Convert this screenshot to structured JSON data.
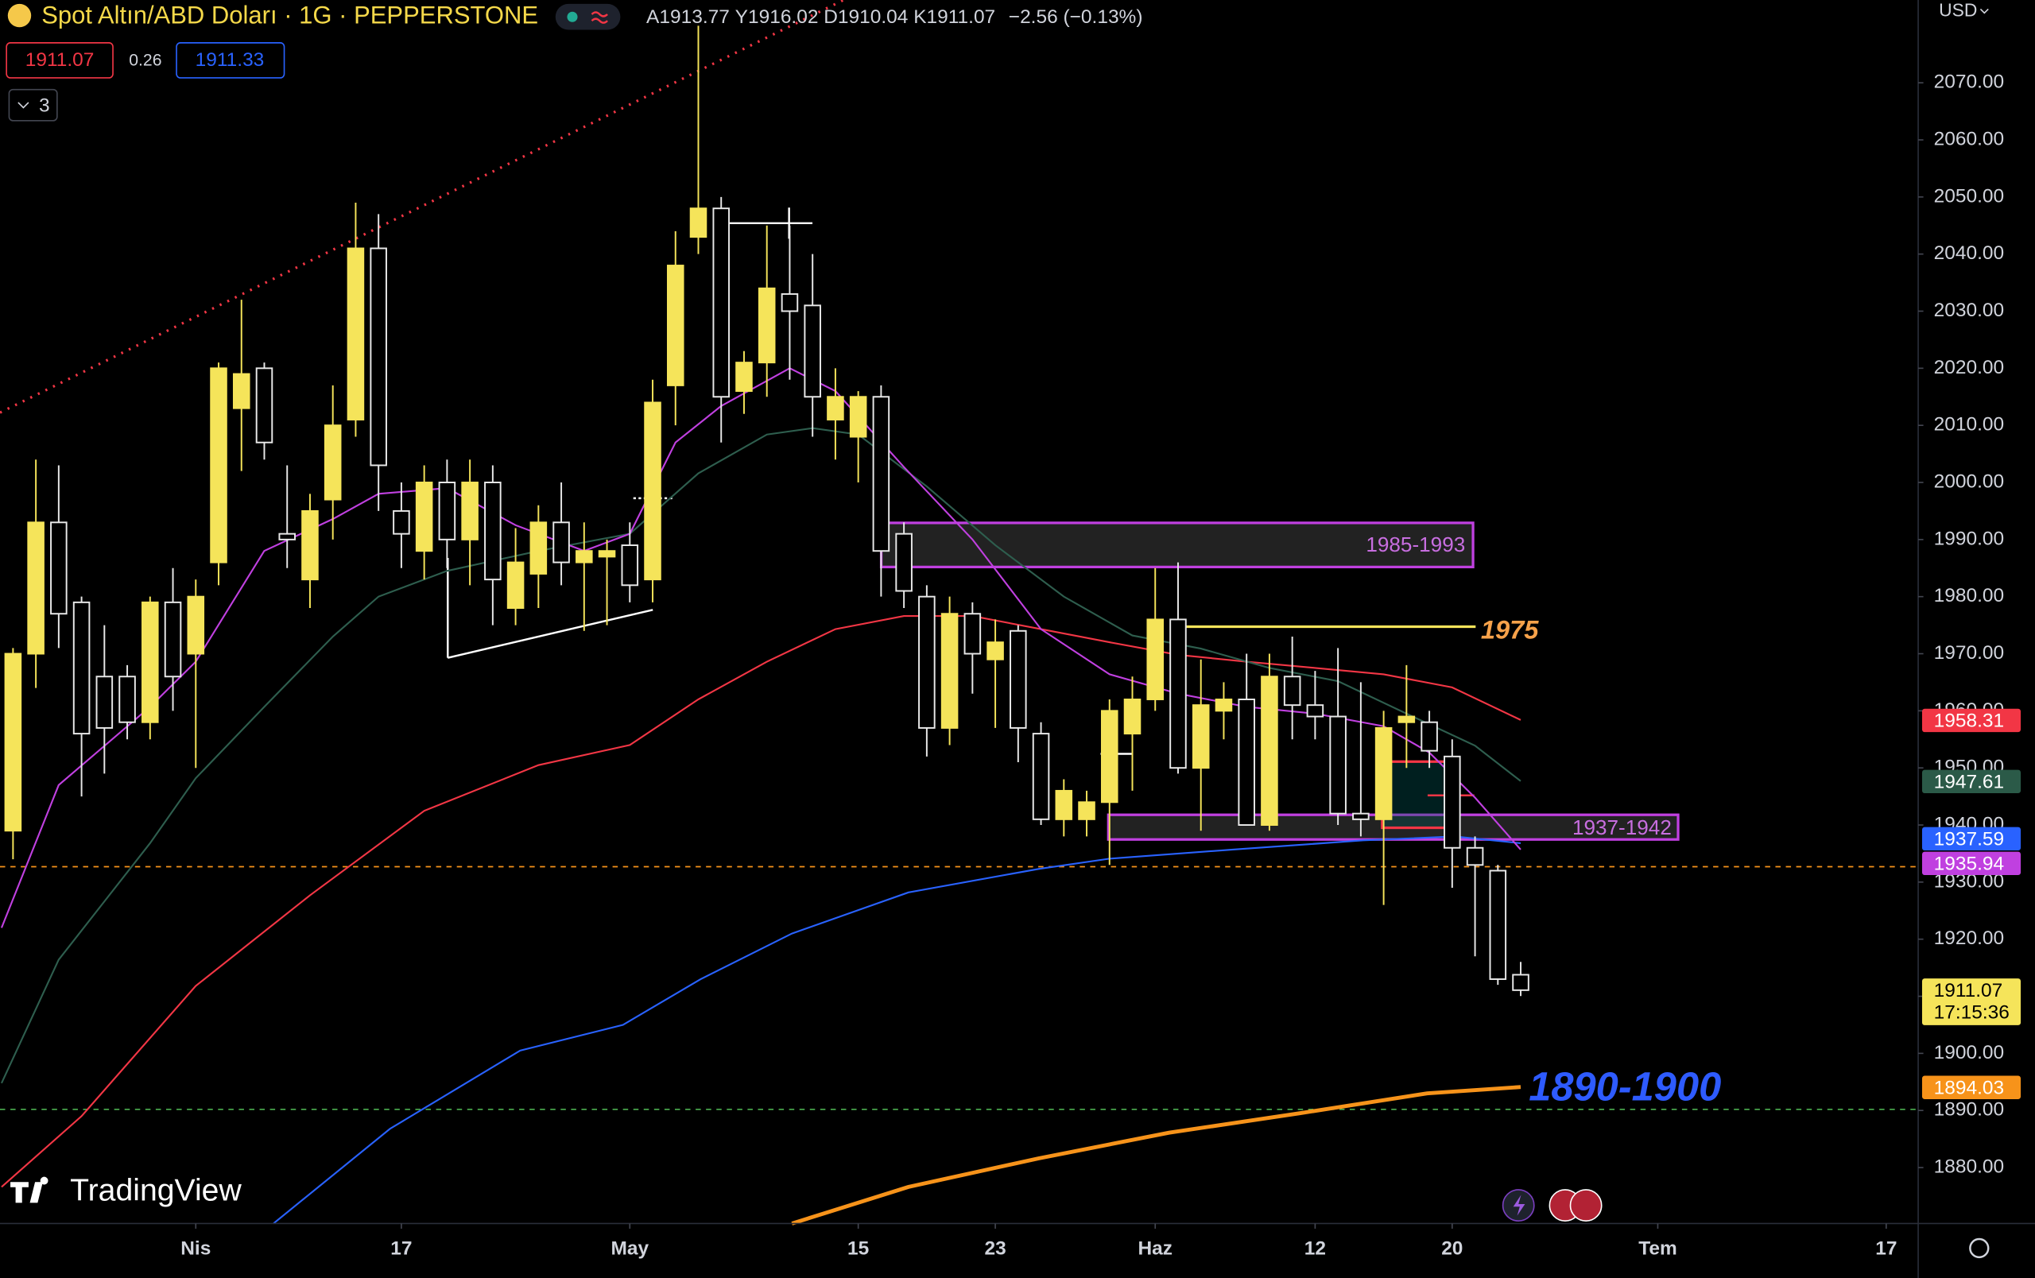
{
  "header": {
    "symbol": "Spot Altın/ABD Doları · 1G · PEPPERSTONE",
    "ohlc_keys": [
      "A",
      "Y",
      "D",
      "K"
    ],
    "change": "−2.56 (−0.13%)",
    "bid": 1911.07,
    "spread": 0.26,
    "ask": 1911.33,
    "indicators": 3,
    "currency": "USD",
    "brand": "TradingView"
  },
  "chart_data": {
    "type": "candlestick",
    "up_color": "#f5e45a",
    "down_color": "#e8e8e8",
    "grid": false,
    "x": [
      0,
      1,
      2,
      3,
      4,
      5,
      6,
      7,
      8,
      9,
      10,
      11,
      12,
      13,
      14,
      15,
      16,
      17,
      18,
      19,
      20,
      21,
      22,
      23,
      24,
      25,
      26,
      27,
      28,
      29,
      30,
      31,
      32,
      33,
      34,
      35,
      36,
      37,
      38,
      39,
      40,
      41,
      42,
      43,
      44,
      45,
      46,
      47,
      48,
      49,
      50,
      51,
      52,
      53,
      54,
      55,
      56,
      57,
      58,
      59,
      60,
      61,
      62,
      63,
      64,
      65,
      66
    ],
    "open": [
      1939,
      1970,
      1993,
      1979,
      1966,
      1966,
      1958,
      1979,
      1970,
      1986,
      2013,
      2020,
      1991,
      1983,
      1997,
      2011,
      2041,
      1995,
      1988,
      2000,
      1990,
      2000,
      1978,
      1984,
      1993,
      1986,
      1987,
      1989,
      1983,
      2017,
      2043,
      2048,
      2016,
      2021,
      2033,
      2031,
      2011,
      2008,
      2015,
      1991,
      1980,
      1957,
      1977,
      1969,
      1974,
      1956,
      1941,
      1941,
      1944,
      1956,
      1962,
      1976,
      1950,
      1960,
      1962,
      1940,
      1966,
      1961,
      1959,
      1942,
      1941,
      1958,
      1958,
      1952,
      1936,
      1932,
      1913.77
    ],
    "high": [
      1971,
      2004,
      2003,
      1980,
      1975,
      1968,
      1980,
      1985,
      1983,
      2021,
      2032,
      2021,
      2003,
      1998,
      2017,
      2049,
      2047,
      2000,
      2003,
      2004,
      2004,
      2003,
      1992,
      1996,
      2000,
      1993,
      1990,
      1993,
      2018,
      2044,
      2080,
      2050,
      2023,
      2045,
      2045,
      2040,
      2020,
      2016,
      2017,
      1993,
      1982,
      1980,
      1979,
      1976,
      1975,
      1958,
      1948,
      1946,
      1962,
      1966,
      1985,
      1986,
      1969,
      1965,
      1970,
      1970,
      1973,
      1967,
      1971,
      1965,
      1960,
      1968,
      1960,
      1955,
      1938,
      1933,
      1916.02
    ],
    "low": [
      1934,
      1964,
      1971,
      1945,
      1949,
      1955,
      1955,
      1960,
      1950,
      1982,
      2002,
      2004,
      1985,
      1978,
      1990,
      2008,
      1995,
      1985,
      1983,
      1985,
      1982,
      1975,
      1975,
      1978,
      1982,
      1974,
      1975,
      1979,
      1979,
      2010,
      2040,
      2007,
      2012,
      2015,
      2018,
      2008,
      2004,
      2000,
      1980,
      1978,
      1952,
      1954,
      1963,
      1957,
      1951,
      1940,
      1938,
      1938,
      1933,
      1946,
      1960,
      1949,
      1939,
      1955,
      1940,
      1939,
      1955,
      1955,
      1940,
      1938,
      1926,
      1950,
      1950,
      1929,
      1917,
      1912,
      1910.04
    ],
    "close": [
      1970,
      1993,
      1977,
      1956,
      1957,
      1958,
      1979,
      1966,
      1980,
      2020,
      2019,
      2007,
      1990,
      1995,
      2010,
      2041,
      2003,
      1991,
      2000,
      1990,
      2000,
      1983,
      1986,
      1993,
      1986,
      1988,
      1988,
      1982,
      2014,
      2038,
      2048,
      2015,
      2021,
      2034,
      2030,
      2015,
      2015,
      2015,
      1988,
      1981,
      1957,
      1977,
      1970,
      1972,
      1957,
      1941,
      1946,
      1944,
      1960,
      1962,
      1976,
      1950,
      1961,
      1962,
      1940,
      1966,
      1961,
      1959,
      1942,
      1941,
      1957,
      1959,
      1953,
      1936,
      1933,
      1913,
      1911.07
    ],
    "countdown": "17:15:36",
    "xlim": [
      -0.57,
      83.4
    ],
    "ylim": [
      1870.2,
      2084.5
    ],
    "xticks": [
      {
        "value": 8,
        "label": "Nis"
      },
      {
        "value": 17,
        "label": "17"
      },
      {
        "value": 27,
        "label": "May"
      },
      {
        "value": 37,
        "label": "15"
      },
      {
        "value": 43,
        "label": "23"
      },
      {
        "value": 50,
        "label": "Haz"
      },
      {
        "value": 57,
        "label": "12"
      },
      {
        "value": 63,
        "label": "20"
      },
      {
        "value": 72,
        "label": "Tem"
      },
      {
        "value": 82,
        "label": "17"
      }
    ],
    "yticks": [
      {
        "value": 1880,
        "label": "1880.00"
      },
      {
        "value": 1890,
        "label": "1890.00"
      },
      {
        "value": 1900,
        "label": "1900.00"
      },
      {
        "value": 1910,
        "label": "1910.00"
      },
      {
        "value": 1920,
        "label": "1920.00"
      },
      {
        "value": 1930,
        "label": "1930.00"
      },
      {
        "value": 1940,
        "label": "1940.00"
      },
      {
        "value": 1950,
        "label": "1950.00"
      },
      {
        "value": 1960,
        "label": "1960.00"
      },
      {
        "value": 1970,
        "label": "1970.00"
      },
      {
        "value": 1980,
        "label": "1980.00"
      },
      {
        "value": 1990,
        "label": "1990.00"
      },
      {
        "value": 2000,
        "label": "2000.00"
      },
      {
        "value": 2010,
        "label": "2010.00"
      },
      {
        "value": 2020,
        "label": "2020.00"
      },
      {
        "value": 2030,
        "label": "2030.00"
      },
      {
        "value": 2040,
        "label": "2040.00"
      },
      {
        "value": 2050,
        "label": "2050.00"
      },
      {
        "value": 2060,
        "label": "2060.00"
      },
      {
        "value": 2070,
        "label": "2070.00"
      }
    ],
    "series": [
      {
        "color": "#f23645",
        "last_value": 1958.31,
        "x": [
          -0.5,
          3,
          8,
          13,
          18,
          23,
          27,
          30,
          33,
          36,
          39,
          42,
          45,
          48,
          51,
          54,
          57,
          60,
          63,
          66
        ],
        "values": [
          1876.6,
          1889,
          1911.8,
          1927.7,
          1942.5,
          1950.5,
          1954,
          1962,
          1968.6,
          1974.3,
          1976.6,
          1976.6,
          1974.3,
          1972,
          1969.8,
          1968.6,
          1967.5,
          1966.4,
          1964.1,
          1958.4
        ]
      },
      {
        "color": "#2e5e4e",
        "tag_color": "#2b5a48",
        "last_value": 1947.61,
        "x": [
          -0.5,
          2,
          6,
          8,
          11,
          14,
          16,
          19,
          23,
          27,
          30,
          33,
          35,
          37,
          40,
          43,
          46,
          49,
          52,
          55,
          58,
          61,
          64,
          66
        ],
        "values": [
          1894.8,
          1916.4,
          1936.8,
          1948.2,
          1960.7,
          1973,
          1980,
          1984.5,
          1988,
          1991,
          2001.6,
          2008.4,
          2009.5,
          2008.4,
          1999.3,
          1989,
          1980,
          1973.2,
          1970.9,
          1967.5,
          1965.2,
          1959.5,
          1953.9,
          1947.7
        ]
      },
      {
        "color": "#2962ff",
        "last_value": 1937.59,
        "x": [
          11.4,
          16.5,
          22.2,
          26.7,
          30.1,
          34.1,
          39.2,
          44.9,
          48,
          53.4,
          59.1,
          63.1,
          66
        ],
        "values": [
          1870.2,
          1886.8,
          1900.5,
          1905,
          1913,
          1921,
          1928.2,
          1932.3,
          1934.1,
          1935.7,
          1937.3,
          1938,
          1936.8
        ]
      },
      {
        "color": "#c040e0",
        "last_value": 1935.94,
        "x": [
          -0.5,
          2,
          6,
          8,
          11,
          14,
          16,
          19,
          22,
          25,
          27,
          29,
          31,
          34,
          36,
          39,
          42,
          45,
          48,
          51,
          54,
          57,
          60,
          62,
          64,
          66
        ],
        "values": [
          1922,
          1947,
          1960.7,
          1968.6,
          1988,
          1993.6,
          1998,
          1999,
          1992.5,
          1988,
          1991,
          2007,
          2013.4,
          2020,
          2016,
          2002.7,
          1990,
          1974.3,
          1966.4,
          1963,
          1960.7,
          1959.5,
          1957.3,
          1952.7,
          1944.8,
          1935.7
        ]
      },
      {
        "color": "#f7931a",
        "last_value": 1894.03,
        "x": [
          34.1,
          39.2,
          44.9,
          50.6,
          56.3,
          61.9,
          66
        ],
        "values": [
          1870.2,
          1876.6,
          1881.6,
          1886.1,
          1889.5,
          1893,
          1894.1
        ]
      }
    ],
    "annotations": {
      "zone_upper": "1985-1993",
      "zone_lower": "1937-1942",
      "level": "1975",
      "target": "1890-1900"
    }
  }
}
